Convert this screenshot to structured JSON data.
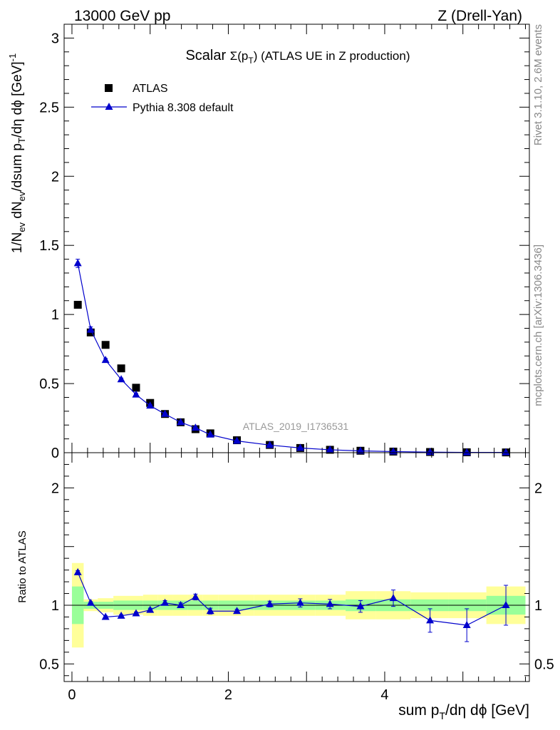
{
  "header": {
    "left": "13000 GeV pp",
    "right": "Z (Drell-Yan)"
  },
  "side_labels": {
    "rivet": "Rivet 3.1.10,  2.6M events",
    "mcplots": "mcplots.cern.ch [arXiv:1306.3436]"
  },
  "chart_data": [
    {
      "type": "scatter",
      "title": "Scalar Σ(pT) (ATLAS UE in Z production)",
      "title_parts": {
        "prefix": "Scalar ",
        "sigma": "Σ(p",
        "sub": "T",
        "suffix": ") (ATLAS UE in Z production)"
      },
      "ylabel": "1/Nev dNev/dsum pT/dη dϕ [GeV]-1",
      "ylabel_parts": {
        "a": "1/N",
        "a_sub": "ev",
        "b": " dN",
        "b_sub": "ev",
        "c": "/dsum p",
        "c_sub": "T",
        "d": "/dη dϕ  [GeV]",
        "d_sup": "-1"
      },
      "xlim": [
        -0.1,
        5.85
      ],
      "ylim": [
        0,
        3.1
      ],
      "yticks": [
        {
          "v": 0,
          "label": "0"
        },
        {
          "v": 0.5,
          "label": "0.5"
        },
        {
          "v": 1,
          "label": "1"
        },
        {
          "v": 1.5,
          "label": "1.5"
        },
        {
          "v": 2,
          "label": "2"
        },
        {
          "v": 2.5,
          "label": "2.5"
        },
        {
          "v": 3,
          "label": "3"
        }
      ],
      "legend": {
        "placement": "top-left",
        "entries": [
          "ATLAS",
          "Pythia 8.308 default"
        ]
      },
      "watermark": "ATLAS_2019_I1736531",
      "series": [
        {
          "name": "ATLAS",
          "color": "#000000",
          "marker": "square",
          "x": [
            0.075,
            0.24,
            0.43,
            0.63,
            0.82,
            1.0,
            1.19,
            1.39,
            1.58,
            1.77,
            2.11,
            2.53,
            2.92,
            3.3,
            3.69,
            4.11,
            4.58,
            5.05,
            5.55
          ],
          "y": [
            1.07,
            0.87,
            0.78,
            0.61,
            0.47,
            0.36,
            0.28,
            0.22,
            0.17,
            0.14,
            0.09,
            0.056,
            0.034,
            0.021,
            0.014,
            0.008,
            0.005,
            0.003,
            0.002
          ]
        },
        {
          "name": "Pythia 8.308 default",
          "color": "#0000cc",
          "marker": "triangle",
          "x": [
            0.075,
            0.24,
            0.43,
            0.63,
            0.82,
            1.0,
            1.19,
            1.39,
            1.58,
            1.77,
            2.11,
            2.53,
            2.92,
            3.3,
            3.69,
            4.11,
            4.58,
            5.05,
            5.55
          ],
          "y": [
            1.37,
            0.89,
            0.67,
            0.53,
            0.42,
            0.34,
            0.28,
            0.22,
            0.18,
            0.13,
            0.085,
            0.055,
            0.034,
            0.021,
            0.013,
            0.008,
            0.004,
            0.002,
            0.002
          ],
          "yerr": [
            0.03,
            0.02,
            0.012,
            0.01,
            0.008,
            0.007,
            0.006,
            0.005,
            0.004,
            0.004,
            0.003,
            0.002,
            0.002,
            0.001,
            0.001,
            0.001,
            0.001,
            0.001,
            0.001
          ]
        }
      ]
    },
    {
      "type": "scatter",
      "ylabel": "Ratio to ATLAS",
      "xlabel": "sum pT/dη dϕ [GeV]",
      "xlabel_parts": {
        "a": "sum p",
        "a_sub": "T",
        "b": "/dη dϕ [GeV]"
      },
      "xlim": [
        -0.1,
        5.85
      ],
      "ylim": [
        0.35,
        2.3
      ],
      "xticks": [
        {
          "v": 0,
          "label": "0"
        },
        {
          "v": 2,
          "label": "2"
        },
        {
          "v": 4,
          "label": "4"
        }
      ],
      "yticks": [
        {
          "v": 0.5,
          "label": "0.5"
        },
        {
          "v": 1,
          "label": "1"
        },
        {
          "v": 2,
          "label": "2"
        }
      ],
      "reference_line": 1,
      "bands": {
        "edges": [
          0.0,
          0.15,
          0.33,
          0.53,
          0.72,
          0.91,
          1.1,
          1.29,
          1.48,
          1.67,
          1.87,
          2.33,
          2.72,
          3.11,
          3.5,
          3.89,
          4.33,
          4.82,
          5.3,
          5.8
        ],
        "green_lo": [
          0.84,
          0.97,
          0.97,
          0.96,
          0.96,
          0.96,
          0.96,
          0.96,
          0.96,
          0.96,
          0.96,
          0.96,
          0.96,
          0.96,
          0.95,
          0.95,
          0.95,
          0.95,
          0.92
        ],
        "green_hi": [
          1.16,
          1.03,
          1.03,
          1.04,
          1.04,
          1.04,
          1.04,
          1.04,
          1.04,
          1.04,
          1.04,
          1.04,
          1.04,
          1.04,
          1.05,
          1.05,
          1.05,
          1.05,
          1.08
        ],
        "yellow_lo": [
          0.64,
          0.95,
          0.94,
          0.92,
          0.92,
          0.91,
          0.91,
          0.91,
          0.91,
          0.91,
          0.91,
          0.91,
          0.91,
          0.91,
          0.88,
          0.88,
          0.89,
          0.89,
          0.84
        ],
        "yellow_hi": [
          1.36,
          1.05,
          1.06,
          1.08,
          1.08,
          1.09,
          1.09,
          1.09,
          1.09,
          1.09,
          1.09,
          1.09,
          1.09,
          1.09,
          1.12,
          1.12,
          1.11,
          1.11,
          1.16
        ],
        "green_color": "#99ff99",
        "yellow_color": "#ffff99"
      },
      "series": [
        {
          "name": "Pythia 8.308 default",
          "color": "#0000cc",
          "marker": "triangle",
          "x": [
            0.075,
            0.24,
            0.43,
            0.63,
            0.82,
            1.0,
            1.19,
            1.39,
            1.58,
            1.77,
            2.11,
            2.53,
            2.92,
            3.3,
            3.69,
            4.11,
            4.58,
            5.05,
            5.55
          ],
          "y": [
            1.28,
            1.02,
            0.9,
            0.91,
            0.93,
            0.96,
            1.02,
            1.0,
            1.07,
            0.95,
            0.95,
            1.01,
            1.02,
            1.01,
            0.99,
            1.06,
            0.87,
            0.83,
            1.0
          ],
          "yerr": [
            0.015,
            0.01,
            0.01,
            0.01,
            0.012,
            0.015,
            0.02,
            0.02,
            0.025,
            0.025,
            0.015,
            0.025,
            0.035,
            0.04,
            0.05,
            0.07,
            0.1,
            0.14,
            0.17
          ]
        }
      ]
    }
  ]
}
